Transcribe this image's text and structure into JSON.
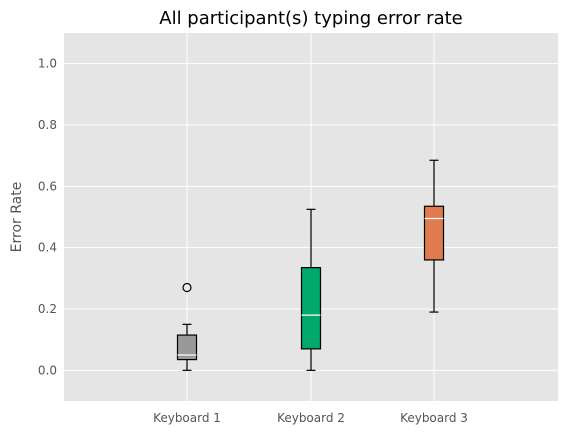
{
  "chart_data": {
    "type": "box",
    "title": "All participant(s) typing error rate",
    "xlabel": "",
    "ylabel": "Error Rate",
    "ylim": [
      -0.1,
      1.1
    ],
    "yticks": [
      "0.0",
      "0.2",
      "0.4",
      "0.6",
      "0.8",
      "1.0"
    ],
    "grid": true,
    "categories": [
      "Keyboard 1",
      "Keyboard 2",
      "Keyboard 3"
    ],
    "boxes": [
      {
        "category": "Keyboard 1",
        "whisker_low": 0.0,
        "q1": 0.035,
        "median": 0.05,
        "q3": 0.115,
        "whisker_high": 0.15,
        "outliers": [
          0.27
        ],
        "color": "#999999"
      },
      {
        "category": "Keyboard 2",
        "whisker_low": 0.0,
        "q1": 0.07,
        "median": 0.18,
        "q3": 0.335,
        "whisker_high": 0.525,
        "outliers": [],
        "color": "#00A86B"
      },
      {
        "category": "Keyboard 3",
        "whisker_low": 0.19,
        "q1": 0.36,
        "median": 0.495,
        "q3": 0.535,
        "whisker_high": 0.685,
        "outliers": [],
        "color": "#E07B4F"
      }
    ]
  },
  "colors": {
    "plot_background": "#E5E5E5",
    "grid": "#FFFFFF",
    "whisker": "#000000",
    "median_line": "#FFFFFF"
  }
}
